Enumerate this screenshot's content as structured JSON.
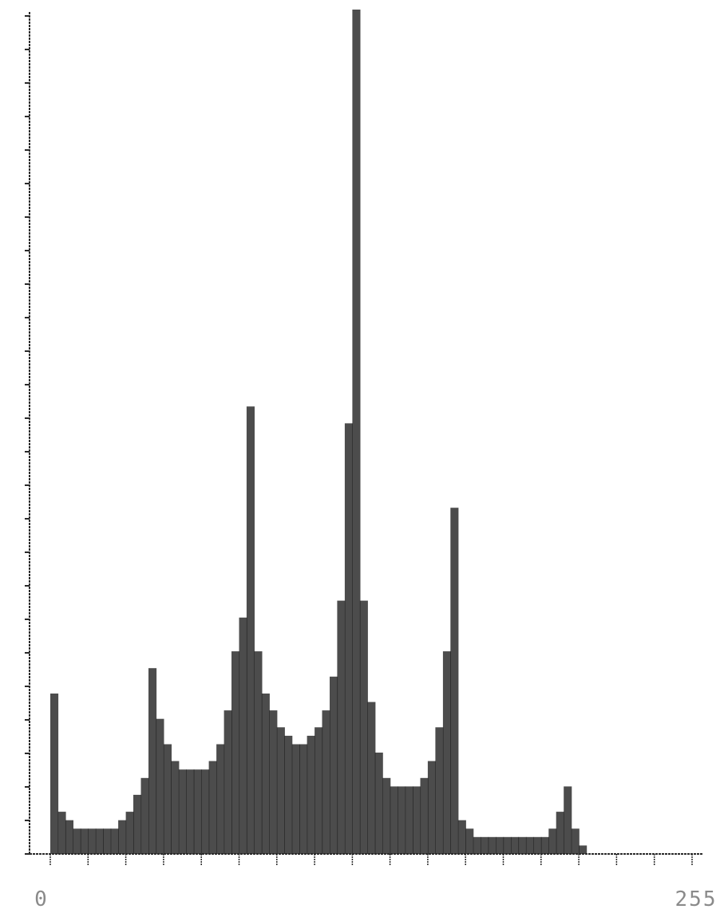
{
  "chart_data": {
    "type": "bar",
    "title": "",
    "xlabel": "",
    "ylabel": "",
    "x_tick_labels": [
      "0",
      "255"
    ],
    "xlim": [
      0,
      255
    ],
    "ylim": [
      0,
      1.0
    ],
    "grid": false,
    "legend": "none",
    "colors": {
      "bars": "#1a1a1a",
      "axis": "#2a2a2a",
      "tick_labels": "#8a8a8a"
    },
    "x": [
      0,
      3,
      6,
      9,
      12,
      15,
      18,
      21,
      24,
      27,
      30,
      33,
      36,
      39,
      42,
      45,
      48,
      51,
      54,
      57,
      60,
      63,
      66,
      69,
      72,
      75,
      78,
      81,
      84,
      87,
      90,
      93,
      96,
      99,
      102,
      105,
      108,
      111,
      114,
      117,
      120,
      123,
      126,
      129,
      132,
      135,
      138,
      141,
      144,
      147,
      150,
      153,
      156,
      159,
      162,
      165,
      168,
      171,
      174,
      177,
      180,
      183,
      186,
      189,
      192,
      195,
      198,
      201,
      204,
      207,
      210,
      213,
      216,
      219,
      222,
      225,
      228,
      231,
      234,
      237,
      240
    ],
    "values": [
      0.19,
      0.05,
      0.04,
      0.03,
      0.03,
      0.03,
      0.03,
      0.03,
      0.03,
      0.04,
      0.05,
      0.07,
      0.09,
      0.22,
      0.16,
      0.13,
      0.11,
      0.1,
      0.1,
      0.1,
      0.1,
      0.11,
      0.13,
      0.17,
      0.24,
      0.28,
      0.53,
      0.24,
      0.19,
      0.17,
      0.15,
      0.14,
      0.13,
      0.13,
      0.14,
      0.15,
      0.17,
      0.21,
      0.3,
      0.51,
      1.0,
      0.3,
      0.18,
      0.12,
      0.09,
      0.08,
      0.08,
      0.08,
      0.08,
      0.09,
      0.11,
      0.15,
      0.24,
      0.41,
      0.04,
      0.03,
      0.02,
      0.02,
      0.02,
      0.02,
      0.02,
      0.02,
      0.02,
      0.02,
      0.02,
      0.02,
      0.03,
      0.05,
      0.08,
      0.03,
      0.01,
      0.0,
      0.0,
      0.0,
      0.0,
      0.0,
      0.0,
      0.0,
      0.0,
      0.0,
      0.0
    ]
  }
}
